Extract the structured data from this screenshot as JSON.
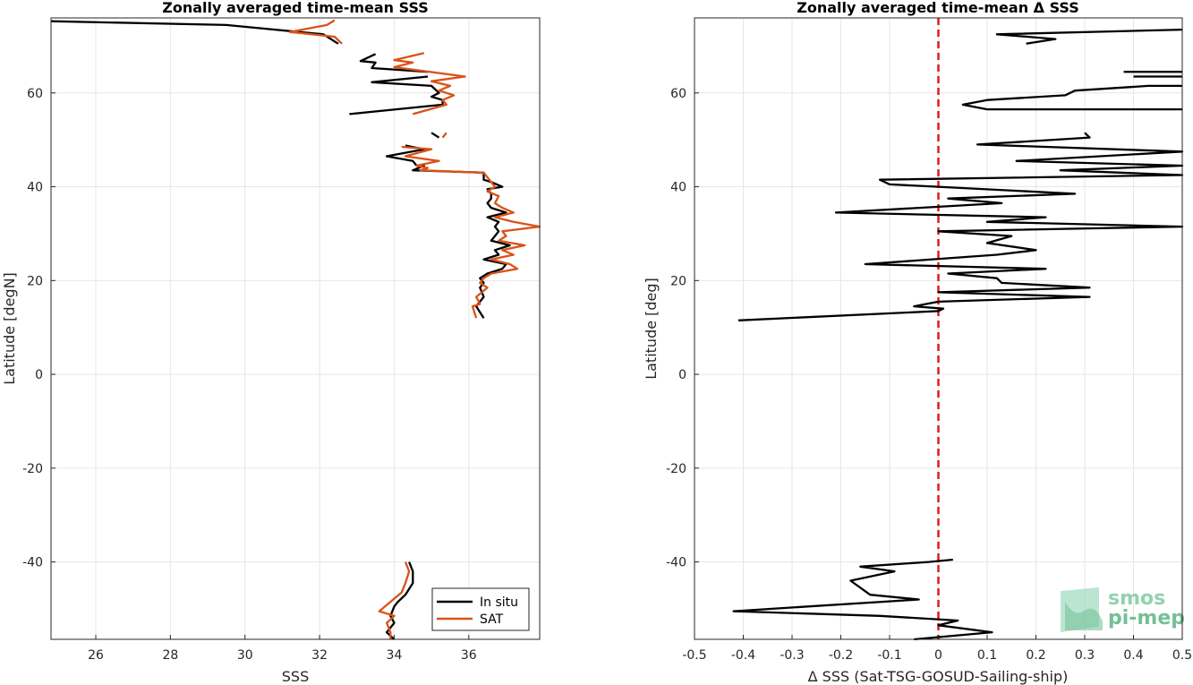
{
  "chart_data": [
    {
      "type": "line",
      "title": "Zonally averaged time-mean SSS",
      "xlabel": "SSS",
      "ylabel": "Latitude [degN]",
      "xlim": [
        24.8,
        37.9
      ],
      "ylim": [
        -56.5,
        76
      ],
      "xticks": [
        26,
        28,
        30,
        32,
        34,
        36
      ],
      "yticks": [
        -40,
        -20,
        0,
        20,
        40,
        60
      ],
      "grid": true,
      "legend_placement": "bottom-right",
      "series": [
        {
          "name": "In situ",
          "color": "#000000",
          "segments": [
            [
              [
                24.8,
                75.3
              ],
              [
                29.5,
                74.5
              ],
              [
                32.1,
                72.5
              ],
              [
                32.5,
                70.5
              ]
            ],
            [
              [
                33.5,
                68.3
              ],
              [
                33.1,
                66.8
              ],
              [
                33.5,
                66.5
              ],
              [
                33.4,
                65.3
              ],
              [
                34.9,
                64.5
              ]
            ],
            [
              [
                34.9,
                63.5
              ],
              [
                33.4,
                62.3
              ],
              [
                35.0,
                61.5
              ],
              [
                35.2,
                60.0
              ],
              [
                35.0,
                59.2
              ],
              [
                35.3,
                58.5
              ],
              [
                35.3,
                57.5
              ],
              [
                32.8,
                55.5
              ]
            ],
            [
              [
                35.0,
                51.5
              ],
              [
                35.2,
                50.5
              ]
            ],
            [
              [
                34.3,
                48.8
              ],
              [
                34.8,
                48.0
              ],
              [
                33.8,
                46.5
              ],
              [
                34.5,
                45.5
              ],
              [
                34.6,
                44.5
              ],
              [
                34.8,
                44.5
              ],
              [
                34.5,
                43.5
              ],
              [
                36.4,
                43.0
              ],
              [
                36.4,
                41.5
              ],
              [
                36.6,
                41.0
              ],
              [
                36.9,
                40.0
              ],
              [
                36.5,
                39.5
              ],
              [
                36.6,
                38.5
              ],
              [
                36.6,
                37.5
              ],
              [
                36.5,
                36.5
              ],
              [
                36.6,
                35.5
              ],
              [
                37.0,
                34.5
              ],
              [
                36.5,
                33.5
              ],
              [
                36.8,
                32.5
              ],
              [
                36.7,
                31.5
              ],
              [
                36.8,
                30.5
              ],
              [
                36.7,
                29.5
              ],
              [
                36.6,
                28.5
              ],
              [
                37.1,
                27.5
              ],
              [
                36.7,
                26.5
              ],
              [
                36.8,
                25.5
              ],
              [
                36.4,
                24.5
              ],
              [
                37.0,
                23.5
              ],
              [
                36.9,
                22.5
              ],
              [
                36.5,
                21.5
              ],
              [
                36.3,
                20.5
              ],
              [
                36.4,
                19.5
              ],
              [
                36.3,
                18.5
              ],
              [
                36.4,
                16.5
              ],
              [
                36.2,
                14.5
              ],
              [
                36.4,
                12.0
              ]
            ],
            [
              [
                34.4,
                -40.0
              ],
              [
                34.5,
                -42.0
              ],
              [
                34.5,
                -44.5
              ],
              [
                34.3,
                -47.0
              ],
              [
                34.1,
                -48.5
              ],
              [
                34.0,
                -49.5
              ],
              [
                33.9,
                -51.5
              ],
              [
                34.0,
                -53.0
              ],
              [
                33.8,
                -55.0
              ],
              [
                34.0,
                -56.5
              ]
            ]
          ]
        },
        {
          "name": "SAT",
          "color": "#D95319",
          "segments": [
            [
              [
                32.4,
                75.5
              ],
              [
                32.2,
                74.5
              ],
              [
                31.2,
                73.0
              ],
              [
                32.4,
                72.0
              ],
              [
                32.6,
                70.5
              ]
            ],
            [
              [
                34.8,
                68.5
              ],
              [
                34.0,
                67.0
              ],
              [
                34.5,
                66.5
              ],
              [
                34.0,
                65.5
              ],
              [
                35.9,
                63.5
              ],
              [
                35.0,
                62.5
              ],
              [
                35.5,
                61.5
              ],
              [
                35.2,
                60.5
              ],
              [
                35.6,
                59.5
              ],
              [
                35.3,
                58.5
              ],
              [
                35.4,
                57.5
              ],
              [
                34.5,
                55.5
              ]
            ],
            [
              [
                35.4,
                51.5
              ],
              [
                35.3,
                50.5
              ]
            ],
            [
              [
                34.2,
                48.5
              ],
              [
                35.0,
                48.0
              ],
              [
                34.3,
                46.5
              ],
              [
                35.2,
                45.5
              ],
              [
                34.6,
                44.5
              ],
              [
                34.9,
                44.0
              ],
              [
                34.7,
                43.5
              ],
              [
                36.4,
                43.0
              ],
              [
                36.6,
                41.0
              ],
              [
                36.7,
                40.0
              ],
              [
                36.5,
                39.0
              ],
              [
                36.8,
                38.0
              ],
              [
                36.7,
                36.5
              ],
              [
                36.9,
                35.5
              ],
              [
                37.2,
                34.5
              ],
              [
                36.7,
                33.5
              ],
              [
                37.2,
                32.5
              ],
              [
                37.9,
                31.5
              ],
              [
                36.9,
                30.5
              ],
              [
                37.0,
                29.5
              ],
              [
                36.8,
                28.5
              ],
              [
                37.5,
                27.5
              ],
              [
                36.9,
                26.5
              ],
              [
                37.2,
                25.5
              ],
              [
                36.6,
                24.5
              ],
              [
                37.1,
                23.5
              ],
              [
                37.3,
                22.5
              ],
              [
                36.6,
                21.5
              ],
              [
                36.4,
                20.5
              ],
              [
                36.3,
                19.5
              ],
              [
                36.5,
                18.5
              ],
              [
                36.2,
                16.5
              ],
              [
                36.3,
                15.0
              ],
              [
                36.1,
                14.5
              ],
              [
                36.2,
                12.0
              ]
            ],
            [
              [
                34.3,
                -40.0
              ],
              [
                34.4,
                -42.0
              ],
              [
                34.3,
                -44.5
              ],
              [
                34.2,
                -46.5
              ],
              [
                33.9,
                -48.5
              ],
              [
                33.6,
                -50.5
              ],
              [
                34.0,
                -51.5
              ],
              [
                33.8,
                -53.0
              ],
              [
                33.9,
                -55.0
              ],
              [
                33.9,
                -56.5
              ]
            ]
          ]
        }
      ]
    },
    {
      "type": "line",
      "title": "Zonally averaged time-mean Δ SSS",
      "xlabel": "Δ SSS (Sat-TSG-GOSUD-Sailing-ship)",
      "ylabel": "Latitude [deg]",
      "xlim": [
        -0.5,
        0.5
      ],
      "ylim": [
        -56.5,
        76
      ],
      "xticks": [
        -0.5,
        -0.4,
        -0.3,
        -0.2,
        -0.1,
        0,
        0.1,
        0.2,
        0.3,
        0.4,
        0.5
      ],
      "xticklabels": [
        "-0.5",
        "-0.4",
        "-0.3",
        "-0.2",
        "-0.1",
        "0",
        "0.1",
        "0.2",
        "0.3",
        "0.4",
        "0.5"
      ],
      "yticks": [
        -40,
        -20,
        0,
        20,
        40,
        60
      ],
      "grid": true,
      "reference_line": {
        "x": 0,
        "color": "#E41A1C",
        "style": "dashed"
      },
      "series": [
        {
          "color": "#000000",
          "segments": [
            [
              [
                0.5,
                73.5
              ],
              [
                0.12,
                72.5
              ],
              [
                0.24,
                71.5
              ],
              [
                0.18,
                70.5
              ]
            ],
            [
              [
                0.5,
                64.5
              ],
              [
                0.38,
                64.5
              ]
            ],
            [
              [
                0.5,
                63.5
              ],
              [
                0.4,
                63.5
              ]
            ],
            [
              [
                0.5,
                61.5
              ],
              [
                0.43,
                61.5
              ],
              [
                0.28,
                60.5
              ],
              [
                0.26,
                59.5
              ],
              [
                0.1,
                58.5
              ],
              [
                0.05,
                57.5
              ],
              [
                0.1,
                56.5
              ],
              [
                0.5,
                56.5
              ]
            ],
            [
              [
                0.3,
                51.5
              ],
              [
                0.31,
                50.5
              ],
              [
                0.08,
                49.0
              ],
              [
                0.5,
                47.5
              ],
              [
                0.16,
                45.5
              ],
              [
                0.5,
                44.5
              ],
              [
                0.25,
                43.5
              ],
              [
                0.5,
                42.5
              ],
              [
                -0.12,
                41.5
              ],
              [
                -0.1,
                40.5
              ],
              [
                0.0,
                40.0
              ],
              [
                0.28,
                38.5
              ],
              [
                0.02,
                37.5
              ],
              [
                0.13,
                36.5
              ],
              [
                -0.21,
                34.5
              ],
              [
                0.22,
                33.5
              ],
              [
                0.1,
                32.5
              ],
              [
                0.5,
                31.5
              ],
              [
                0.0,
                30.5
              ],
              [
                0.15,
                29.5
              ],
              [
                0.1,
                28.0
              ],
              [
                0.2,
                26.5
              ],
              [
                0.12,
                25.5
              ],
              [
                -0.15,
                23.5
              ],
              [
                0.22,
                22.5
              ],
              [
                0.02,
                21.5
              ],
              [
                0.12,
                20.5
              ],
              [
                0.13,
                19.5
              ],
              [
                0.31,
                18.5
              ],
              [
                0.0,
                17.5
              ],
              [
                0.31,
                16.5
              ],
              [
                0.0,
                15.5
              ],
              [
                -0.05,
                14.5
              ],
              [
                0.01,
                14.0
              ],
              [
                0.0,
                13.5
              ],
              [
                -0.41,
                11.5
              ]
            ],
            [
              [
                0.03,
                -39.5
              ],
              [
                -0.02,
                -40.0
              ],
              [
                -0.16,
                -41.0
              ],
              [
                -0.09,
                -42.0
              ],
              [
                -0.18,
                -44.0
              ],
              [
                -0.14,
                -47.0
              ],
              [
                -0.04,
                -48.0
              ],
              [
                -0.42,
                -50.5
              ],
              [
                -0.12,
                -51.5
              ],
              [
                0.04,
                -52.5
              ],
              [
                0.0,
                -53.5
              ],
              [
                0.11,
                -55.0
              ],
              [
                -0.05,
                -56.5
              ]
            ]
          ]
        }
      ]
    }
  ],
  "logo": {
    "line1": "smos",
    "line2": "pi-mep"
  }
}
